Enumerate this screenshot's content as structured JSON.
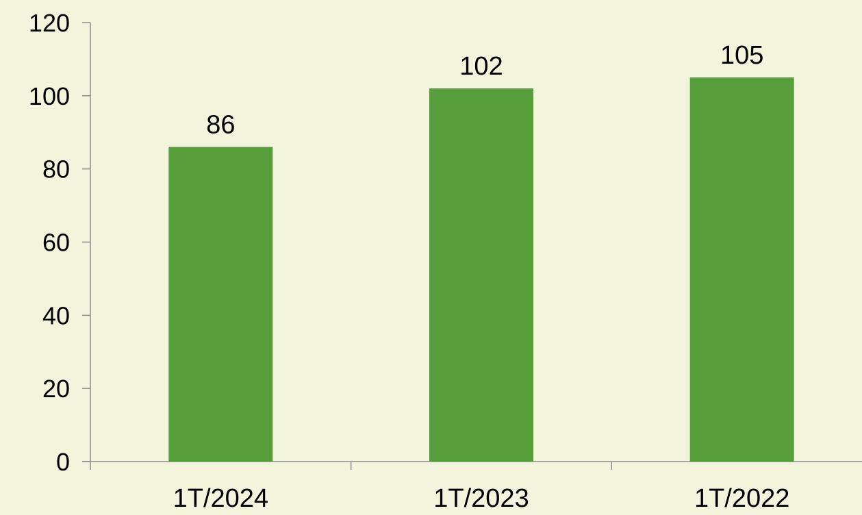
{
  "chart_data": {
    "type": "bar",
    "categories": [
      "1T/2024",
      "1T/2023",
      "1T/2022"
    ],
    "values": [
      86,
      102,
      105
    ],
    "data_labels": [
      "86",
      "102",
      "105"
    ],
    "title": "",
    "xlabel": "",
    "ylabel": "",
    "ylim": [
      0,
      120
    ],
    "yticks": [
      0,
      20,
      40,
      60,
      80,
      100,
      120
    ],
    "ytick_labels": [
      "0",
      "20",
      "40",
      "60",
      "80",
      "100",
      "120"
    ],
    "grid": false,
    "legend": "none",
    "colors": {
      "bar": "#559e3a",
      "background": "#f2f5db",
      "axis": "#8c8c8c",
      "text": "#000000"
    }
  }
}
